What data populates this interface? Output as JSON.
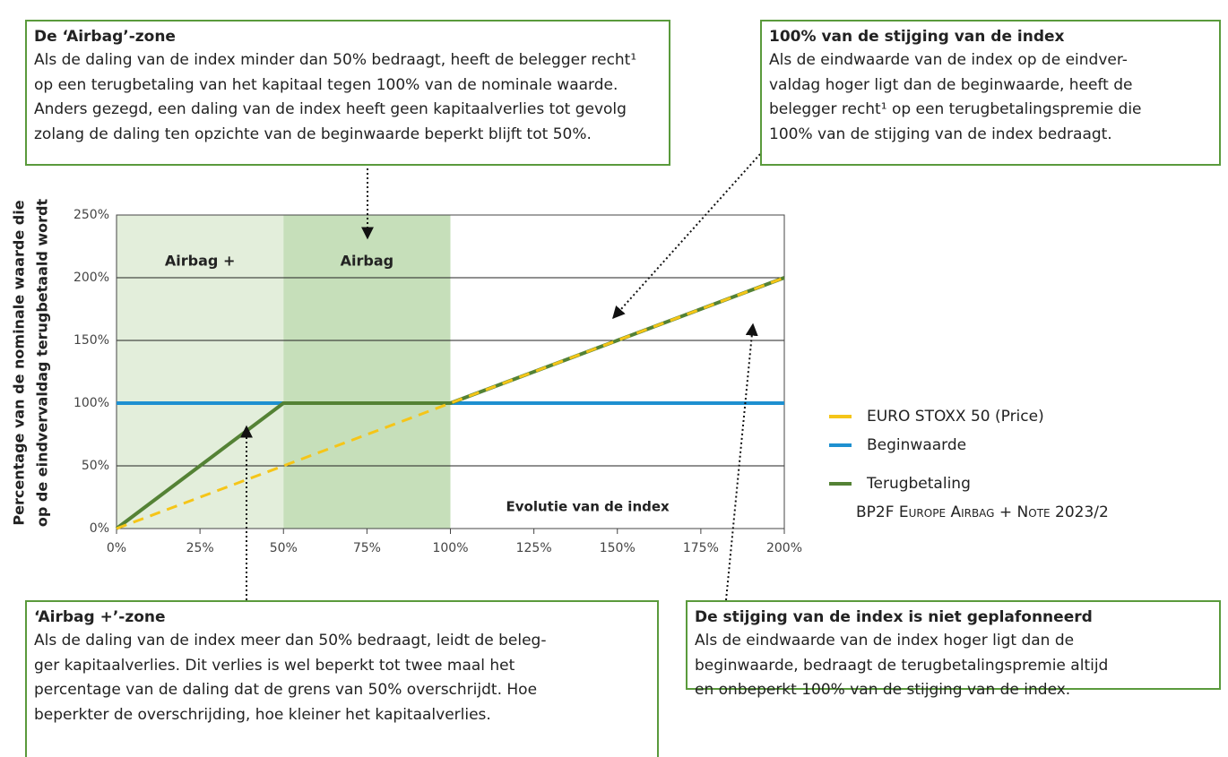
{
  "chart_data": {
    "type": "line",
    "y_label_lines": [
      "Percentage van de nominale waarde die",
      "op de eindvervaldag terugbetaald wordt"
    ],
    "x_annotation": "Evolutie van de index",
    "x": [
      0,
      25,
      50,
      75,
      100,
      125,
      150,
      175,
      200
    ],
    "xlim": [
      0,
      200
    ],
    "xticks": [
      {
        "value": 0,
        "label": "0%"
      },
      {
        "value": 25,
        "label": "25%"
      },
      {
        "value": 50,
        "label": "50%"
      },
      {
        "value": 75,
        "label": "75%"
      },
      {
        "value": 100,
        "label": "100%"
      },
      {
        "value": 125,
        "label": "125%"
      },
      {
        "value": 150,
        "label": "150%"
      },
      {
        "value": 175,
        "label": "175%"
      },
      {
        "value": 200,
        "label": "200%"
      }
    ],
    "ylim": [
      0,
      250
    ],
    "yticks": [
      {
        "value": 0,
        "label": "0%"
      },
      {
        "value": 50,
        "label": "50%"
      },
      {
        "value": 100,
        "label": "100%"
      },
      {
        "value": 150,
        "label": "150%"
      },
      {
        "value": 200,
        "label": "200%"
      },
      {
        "value": 250,
        "label": "250%"
      }
    ],
    "grid": true,
    "zones": [
      {
        "label": "Airbag +",
        "from": 0,
        "to": 50,
        "color": "#e3eedb"
      },
      {
        "label": "Airbag",
        "from": 50,
        "to": 100,
        "color": "#c6dfba"
      }
    ],
    "series": [
      {
        "name": "EURO STOXX 50 (Price)",
        "color": "#f5c518",
        "dashed": true,
        "values": [
          0,
          25,
          50,
          75,
          100,
          125,
          150,
          175,
          200
        ]
      },
      {
        "name": "Beginwaarde",
        "color": "#1e90d0",
        "dashed": false,
        "values": [
          100,
          100,
          100,
          100,
          100,
          100,
          100,
          100,
          100
        ]
      },
      {
        "name": "Terugbetaling",
        "name_line2": "BP2F Europe Airbag + Note 2023/2",
        "color": "#548235",
        "dashed": false,
        "values": [
          0,
          50,
          100,
          100,
          100,
          125,
          150,
          175,
          200
        ]
      }
    ],
    "draw_order": [
      1,
      2,
      0
    ],
    "legend": "right"
  },
  "boxes": [
    {
      "title": "De ‘Airbag’-zone",
      "lines": [
        "Als de daling van de index minder dan 50% bedraagt, heeft de belegger recht¹",
        "op een terugbetaling van het kapitaal tegen 100% van de nominale waarde.",
        "Anders gezegd, een daling van de index heeft geen kapitaalverlies tot gevolg",
        "zolang de daling ten opzichte van de beginwaarde beperkt blijft tot 50%."
      ]
    },
    {
      "title": "100% van de stijging van de index",
      "lines": [
        "Als de eindwaarde van de index op de eindver-",
        "valdag hoger ligt dan de beginwaarde, heeft de",
        "belegger recht¹ op een terugbetalingspremie die",
        "100% van de stijging van de index bedraagt."
      ]
    },
    {
      "title": "‘Airbag +’-zone",
      "lines": [
        "Als de daling van de index meer dan 50% bedraagt, leidt de beleg-",
        "ger kapitaalverlies. Dit verlies is wel beperkt tot twee maal het",
        "percentage van de daling dat de grens van 50% overschrijdt. Hoe",
        "beperkter de overschrijding, hoe kleiner het kapitaalverlies."
      ]
    },
    {
      "title": "De stijging van de index is niet geplafonneerd",
      "lines": [
        "Als de eindwaarde van de index hoger ligt dan de",
        "beginwaarde, bedraagt de terugbetalingspremie altijd",
        "en onbeperkt 100% van de stijging van de index."
      ]
    }
  ]
}
